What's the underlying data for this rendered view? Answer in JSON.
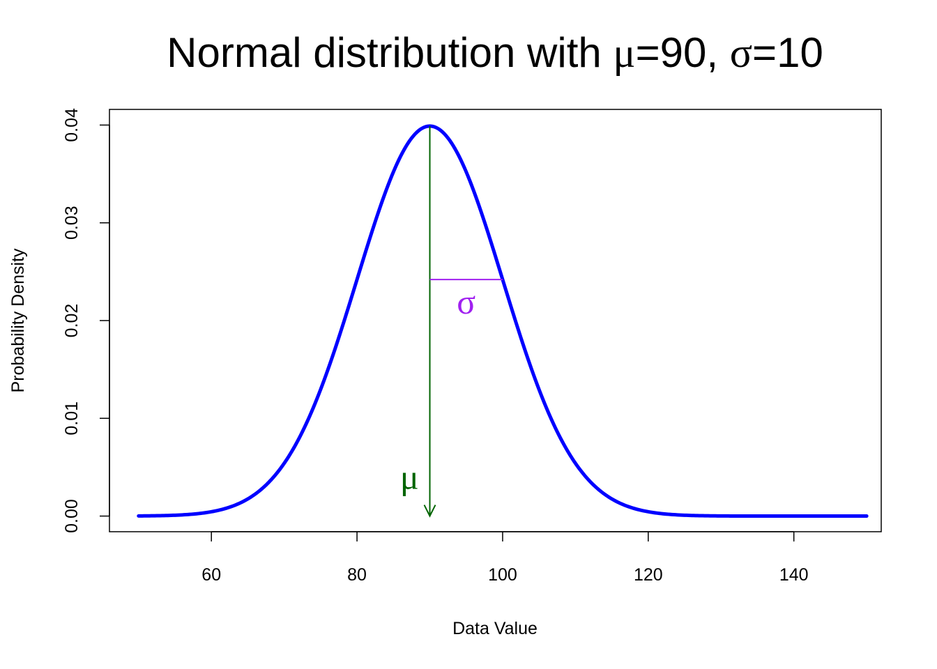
{
  "chart_data": {
    "type": "line",
    "title": {
      "prefix": "Normal distribution with ",
      "mu_symbol": "μ",
      "mu_text": "=90, ",
      "sigma_symbol": "σ",
      "sigma_text": "=10"
    },
    "xlabel": "Data Value",
    "ylabel": "Probability Density",
    "xlim": [
      46,
      152
    ],
    "ylim": [
      -0.0016,
      0.0416
    ],
    "x_ticks": [
      60,
      80,
      100,
      120,
      140
    ],
    "x_tick_labels": [
      "60",
      "80",
      "100",
      "120",
      "140"
    ],
    "y_ticks": [
      0.0,
      0.01,
      0.02,
      0.03,
      0.04
    ],
    "y_tick_labels": [
      "0.00",
      "0.01",
      "0.02",
      "0.03",
      "0.04"
    ],
    "grid": false,
    "legend": "none",
    "series": [
      {
        "mean": 90,
        "sd": 10,
        "x_range": [
          50,
          150
        ],
        "color": "#0000ff",
        "x": [
          50,
          55,
          60,
          65,
          70,
          75,
          80,
          85,
          90,
          95,
          100,
          105,
          110,
          115,
          120,
          125,
          130,
          135,
          140,
          145,
          150
        ],
        "y": [
          1e-05,
          9e-05,
          0.00044,
          0.00175,
          0.0054,
          0.01295,
          0.0242,
          0.03521,
          0.03989,
          0.03521,
          0.0242,
          0.01295,
          0.0054,
          0.00175,
          0.00044,
          9e-05,
          1e-05,
          0.0,
          0.0,
          0.0,
          0.0
        ]
      }
    ],
    "annotations": {
      "mu": {
        "label": "μ",
        "color": "#006400",
        "x": 90,
        "y_from": 0.03989,
        "y_to": 0.0,
        "label_x": 87.2,
        "label_y": 0.0028
      },
      "sigma": {
        "label": "σ",
        "color": "#a020f0",
        "x_from": 90,
        "x_to": 100,
        "y": 0.0242,
        "label_x": 95,
        "label_y": 0.022
      }
    }
  }
}
